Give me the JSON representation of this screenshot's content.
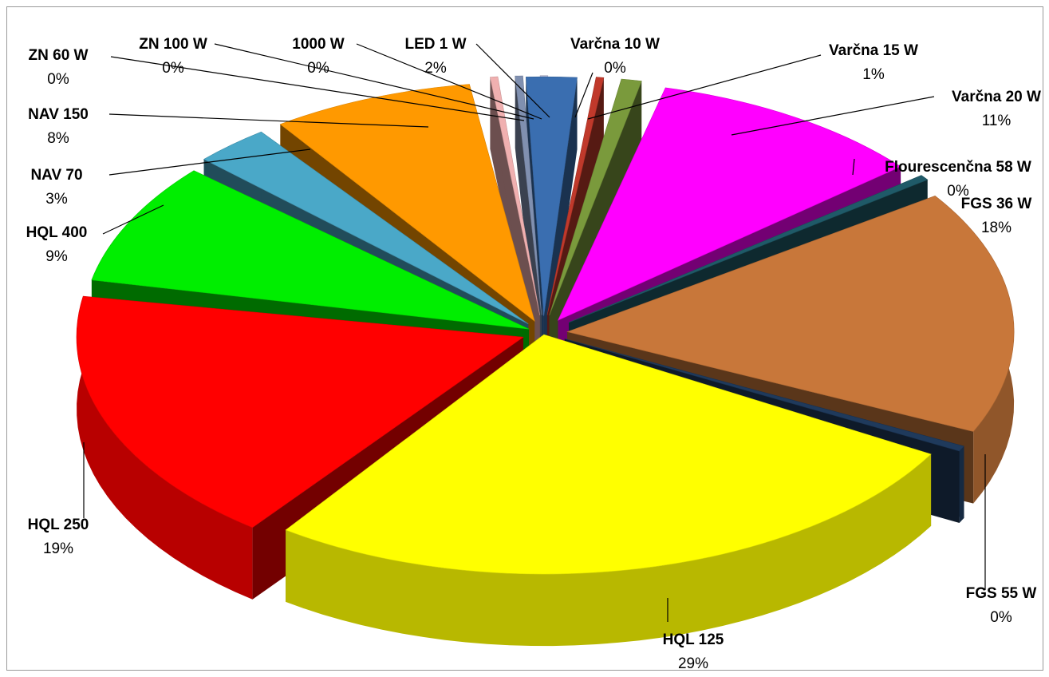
{
  "chart_data": {
    "type": "pie",
    "style": "3d-exploded",
    "title": "",
    "legend": "none",
    "slices": [
      {
        "label": "LED 1 W",
        "percent_label": "2%",
        "value": 2,
        "color": "#3a6eb0"
      },
      {
        "label": "Varčna 10 W",
        "percent_label": "0%",
        "value": 0.3,
        "color": "#c0392b"
      },
      {
        "label": "Varčna 15 W",
        "percent_label": "1%",
        "value": 0.8,
        "color": "#7a9a3c"
      },
      {
        "label": "Varčna 20 W",
        "percent_label": "11%",
        "value": 11,
        "color": "#ff00ff"
      },
      {
        "label": "Flourescenčna 58 W",
        "percent_label": "0%",
        "value": 0.4,
        "color": "#1f5a68"
      },
      {
        "label": "FGS 36 W",
        "percent_label": "18%",
        "value": 18,
        "color": "#c8773a"
      },
      {
        "label": "FGS 55 W",
        "percent_label": "0%",
        "value": 0.4,
        "color": "#1f3a5c"
      },
      {
        "label": "HQL 125",
        "percent_label": "29%",
        "value": 29,
        "color": "#ffff00"
      },
      {
        "label": "HQL 250",
        "percent_label": "19%",
        "value": 19,
        "color": "#ff0000"
      },
      {
        "label": "HQL 400",
        "percent_label": "9%",
        "value": 9,
        "color": "#00ee00"
      },
      {
        "label": "NAV 70",
        "percent_label": "3%",
        "value": 3,
        "color": "#4aa8c8"
      },
      {
        "label": "NAV 150",
        "percent_label": "8%",
        "value": 8,
        "color": "#ff9900"
      },
      {
        "label": "ZN 60 W",
        "percent_label": "0%",
        "value": 0.3,
        "color": "#f0b0b0"
      },
      {
        "label": "ZN 100 W",
        "percent_label": "0%",
        "value": 0.3,
        "color": "#8090b0"
      },
      {
        "label": "1000 W",
        "percent_label": "0%",
        "value": 0.3,
        "color": "#c0c0d8"
      }
    ]
  }
}
